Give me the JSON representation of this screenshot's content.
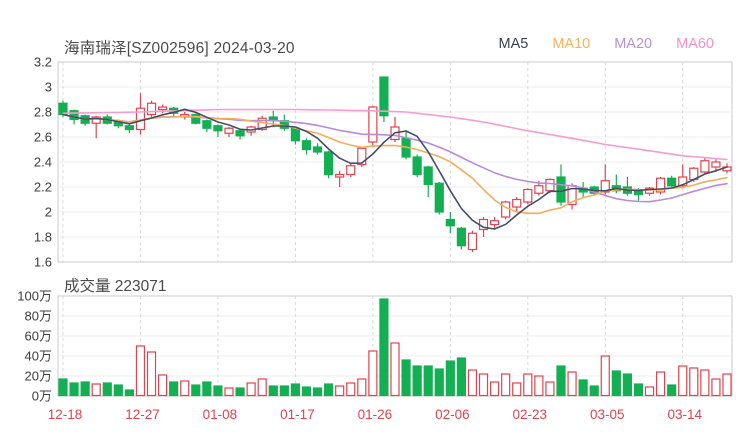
{
  "title": "海南瑞泽[SZ002596] 2024-03-20",
  "volume_label": "成交量 223071",
  "legend": [
    {
      "label": "MA5",
      "color": "#3c3f54"
    },
    {
      "label": "MA10",
      "color": "#f5b45a"
    },
    {
      "label": "MA20",
      "color": "#b98fe0"
    },
    {
      "label": "MA60",
      "color": "#fa8fc7"
    }
  ],
  "colors": {
    "up": "#e2434e",
    "down": "#12b052",
    "ma5": "#474d66",
    "ma10": "#f2ae5a",
    "ma20": "#b78bda",
    "ma60": "#f89ccd",
    "grid": "#ececec",
    "grid_dash": "#d9d9d9",
    "panel_border": "#c9c9c9",
    "price_label": "#3d3d3d",
    "date_label": "#e2434e",
    "background": "#ffffff"
  },
  "price_axis": {
    "ticks": [
      "3.2",
      "3",
      "2.8",
      "2.6",
      "2.4",
      "2.2",
      "2",
      "1.8",
      "1.6"
    ],
    "min": 1.6,
    "max": 3.2
  },
  "volume_axis": {
    "ticks": [
      "100万",
      "80万",
      "60万",
      "40万",
      "20万",
      "0万"
    ],
    "max": 100
  },
  "chart_data": {
    "type": "candlestick+volume",
    "n_candles": 61,
    "x_tick_labels": [
      "12-18",
      "12-27",
      "01-08",
      "01-17",
      "01-26",
      "02-06",
      "02-23",
      "03-05",
      "03-14"
    ],
    "x_tick_indices": [
      0,
      7,
      14,
      21,
      28,
      35,
      42,
      49,
      56
    ],
    "ohlc_note": "per-candle [open,high,low,close]; hollow red = close>open, solid green = close<open",
    "ohlc": [
      [
        2.87,
        2.89,
        2.76,
        2.78
      ],
      [
        2.81,
        2.82,
        2.7,
        2.74
      ],
      [
        2.77,
        2.78,
        2.69,
        2.71
      ],
      [
        2.71,
        2.77,
        2.59,
        2.76
      ],
      [
        2.76,
        2.78,
        2.7,
        2.71
      ],
      [
        2.73,
        2.74,
        2.67,
        2.69
      ],
      [
        2.69,
        2.7,
        2.63,
        2.66
      ],
      [
        2.66,
        2.95,
        2.62,
        2.83
      ],
      [
        2.78,
        2.89,
        2.76,
        2.87
      ],
      [
        2.82,
        2.86,
        2.79,
        2.84
      ],
      [
        2.83,
        2.84,
        2.77,
        2.79
      ],
      [
        2.76,
        2.8,
        2.74,
        2.78
      ],
      [
        2.78,
        2.79,
        2.7,
        2.71
      ],
      [
        2.73,
        2.74,
        2.64,
        2.67
      ],
      [
        2.69,
        2.7,
        2.6,
        2.65
      ],
      [
        2.63,
        2.68,
        2.6,
        2.67
      ],
      [
        2.65,
        2.66,
        2.58,
        2.61
      ],
      [
        2.64,
        2.69,
        2.61,
        2.68
      ],
      [
        2.66,
        2.77,
        2.65,
        2.75
      ],
      [
        2.76,
        2.81,
        2.68,
        2.73
      ],
      [
        2.73,
        2.78,
        2.65,
        2.67
      ],
      [
        2.67,
        2.68,
        2.54,
        2.57
      ],
      [
        2.57,
        2.59,
        2.46,
        2.5
      ],
      [
        2.52,
        2.55,
        2.46,
        2.48
      ],
      [
        2.48,
        2.49,
        2.27,
        2.3
      ],
      [
        2.28,
        2.33,
        2.2,
        2.3
      ],
      [
        2.3,
        2.39,
        2.28,
        2.37
      ],
      [
        2.38,
        2.52,
        2.36,
        2.51
      ],
      [
        2.56,
        2.85,
        2.52,
        2.84
      ],
      [
        3.08,
        3.08,
        2.72,
        2.77
      ],
      [
        2.58,
        2.76,
        2.56,
        2.68
      ],
      [
        2.59,
        2.65,
        2.42,
        2.44
      ],
      [
        2.44,
        2.46,
        2.28,
        2.3
      ],
      [
        2.36,
        2.37,
        2.12,
        2.22
      ],
      [
        2.23,
        2.24,
        1.98,
        2.0
      ],
      [
        1.94,
        2.0,
        1.83,
        1.89
      ],
      [
        1.87,
        1.88,
        1.7,
        1.73
      ],
      [
        1.7,
        1.85,
        1.68,
        1.83
      ],
      [
        1.86,
        1.96,
        1.8,
        1.94
      ],
      [
        1.9,
        1.96,
        1.86,
        1.93
      ],
      [
        1.96,
        2.09,
        1.94,
        2.08
      ],
      [
        2.04,
        2.12,
        2.0,
        2.1
      ],
      [
        2.08,
        2.19,
        2.06,
        2.18
      ],
      [
        2.15,
        2.25,
        2.13,
        2.21
      ],
      [
        2.17,
        2.27,
        2.15,
        2.26
      ],
      [
        2.28,
        2.38,
        2.05,
        2.08
      ],
      [
        2.06,
        2.23,
        2.02,
        2.21
      ],
      [
        2.19,
        2.24,
        2.11,
        2.16
      ],
      [
        2.2,
        2.21,
        2.13,
        2.15
      ],
      [
        2.16,
        2.38,
        2.14,
        2.25
      ],
      [
        2.21,
        2.3,
        2.15,
        2.17
      ],
      [
        2.2,
        2.28,
        2.13,
        2.15
      ],
      [
        2.18,
        2.19,
        2.09,
        2.14
      ],
      [
        2.15,
        2.2,
        2.13,
        2.19
      ],
      [
        2.16,
        2.28,
        2.14,
        2.27
      ],
      [
        2.27,
        2.29,
        2.2,
        2.21
      ],
      [
        2.21,
        2.38,
        2.2,
        2.28
      ],
      [
        2.26,
        2.36,
        2.24,
        2.35
      ],
      [
        2.32,
        2.44,
        2.3,
        2.41
      ],
      [
        2.36,
        2.42,
        2.32,
        2.4
      ],
      [
        2.33,
        2.39,
        2.31,
        2.36
      ]
    ],
    "volumes_wan": [
      17,
      13,
      14,
      12,
      13,
      11,
      6,
      50,
      44,
      21,
      14,
      15,
      11,
      14,
      10,
      8,
      8,
      13,
      17,
      10,
      10,
      12,
      9,
      8,
      12,
      10,
      13,
      17,
      45,
      97,
      53,
      36,
      30,
      30,
      27,
      35,
      38,
      26,
      22,
      14,
      22,
      13,
      22,
      20,
      14,
      30,
      24,
      16,
      10,
      40,
      25,
      22,
      12,
      9,
      24,
      11,
      30,
      28,
      26,
      17,
      22
    ],
    "ma_periods": {
      "ma5": 5,
      "ma10": 10,
      "ma20": 20
    },
    "ma60_keypoints": [
      [
        0,
        2.79
      ],
      [
        7,
        2.8
      ],
      [
        14,
        2.82
      ],
      [
        21,
        2.82
      ],
      [
        28,
        2.81
      ],
      [
        31,
        2.8
      ],
      [
        35,
        2.76
      ],
      [
        38,
        2.72
      ],
      [
        42,
        2.65
      ],
      [
        46,
        2.59
      ],
      [
        49,
        2.54
      ],
      [
        53,
        2.49
      ],
      [
        56,
        2.45
      ],
      [
        60,
        2.42
      ]
    ]
  }
}
